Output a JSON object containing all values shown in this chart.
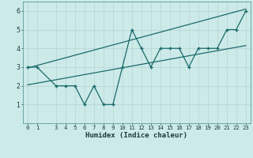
{
  "xlabel": "Humidex (Indice chaleur)",
  "bg_color": "#cceae8",
  "line_color": "#1a6b6b",
  "grid_color": "#b8d8d5",
  "x_data": [
    0,
    1,
    3,
    4,
    5,
    6,
    7,
    8,
    9,
    10,
    11,
    12,
    13,
    14,
    15,
    16,
    17,
    18,
    19,
    20,
    21,
    22,
    23
  ],
  "y_data": [
    3,
    3,
    2,
    2,
    2,
    1,
    2,
    1,
    1,
    3,
    5,
    4,
    3,
    4,
    4,
    4,
    3,
    4,
    4,
    4,
    5,
    5,
    6
  ],
  "xlim": [
    -0.5,
    23.5
  ],
  "ylim": [
    0,
    6.5
  ],
  "xticks": [
    0,
    1,
    3,
    4,
    5,
    6,
    7,
    8,
    9,
    10,
    11,
    12,
    13,
    14,
    15,
    16,
    17,
    18,
    19,
    20,
    21,
    22,
    23
  ],
  "yticks": [
    1,
    2,
    3,
    4,
    5,
    6
  ],
  "trend1_x": [
    0,
    23
  ],
  "trend1_y": [
    2.05,
    4.15
  ],
  "trend2_x": [
    0,
    23
  ],
  "trend2_y": [
    2.95,
    6.1
  ],
  "tick_fontsize": 5.2,
  "label_fontsize": 6.5
}
